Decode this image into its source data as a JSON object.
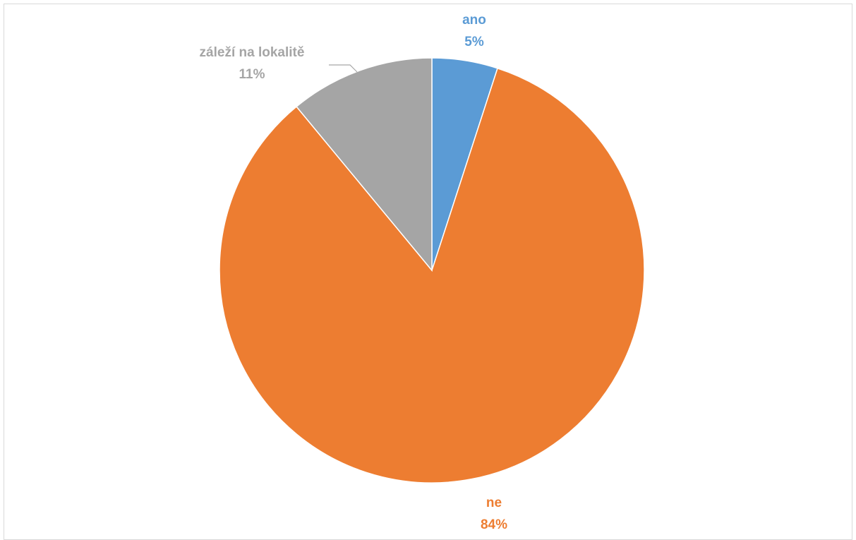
{
  "chart_data": {
    "type": "pie",
    "title": "",
    "slices": [
      {
        "label": "ano",
        "value": 5,
        "value_label": "5%",
        "color": "#5B9BD5"
      },
      {
        "label": "ne",
        "value": 84,
        "value_label": "84%",
        "color": "#ED7D31"
      },
      {
        "label": "záleží na lokalitě",
        "value": 11,
        "value_label": "11%",
        "color": "#A5A5A5"
      }
    ],
    "legend": "none",
    "start_angle": "12 o'clock",
    "direction": "clockwise"
  }
}
